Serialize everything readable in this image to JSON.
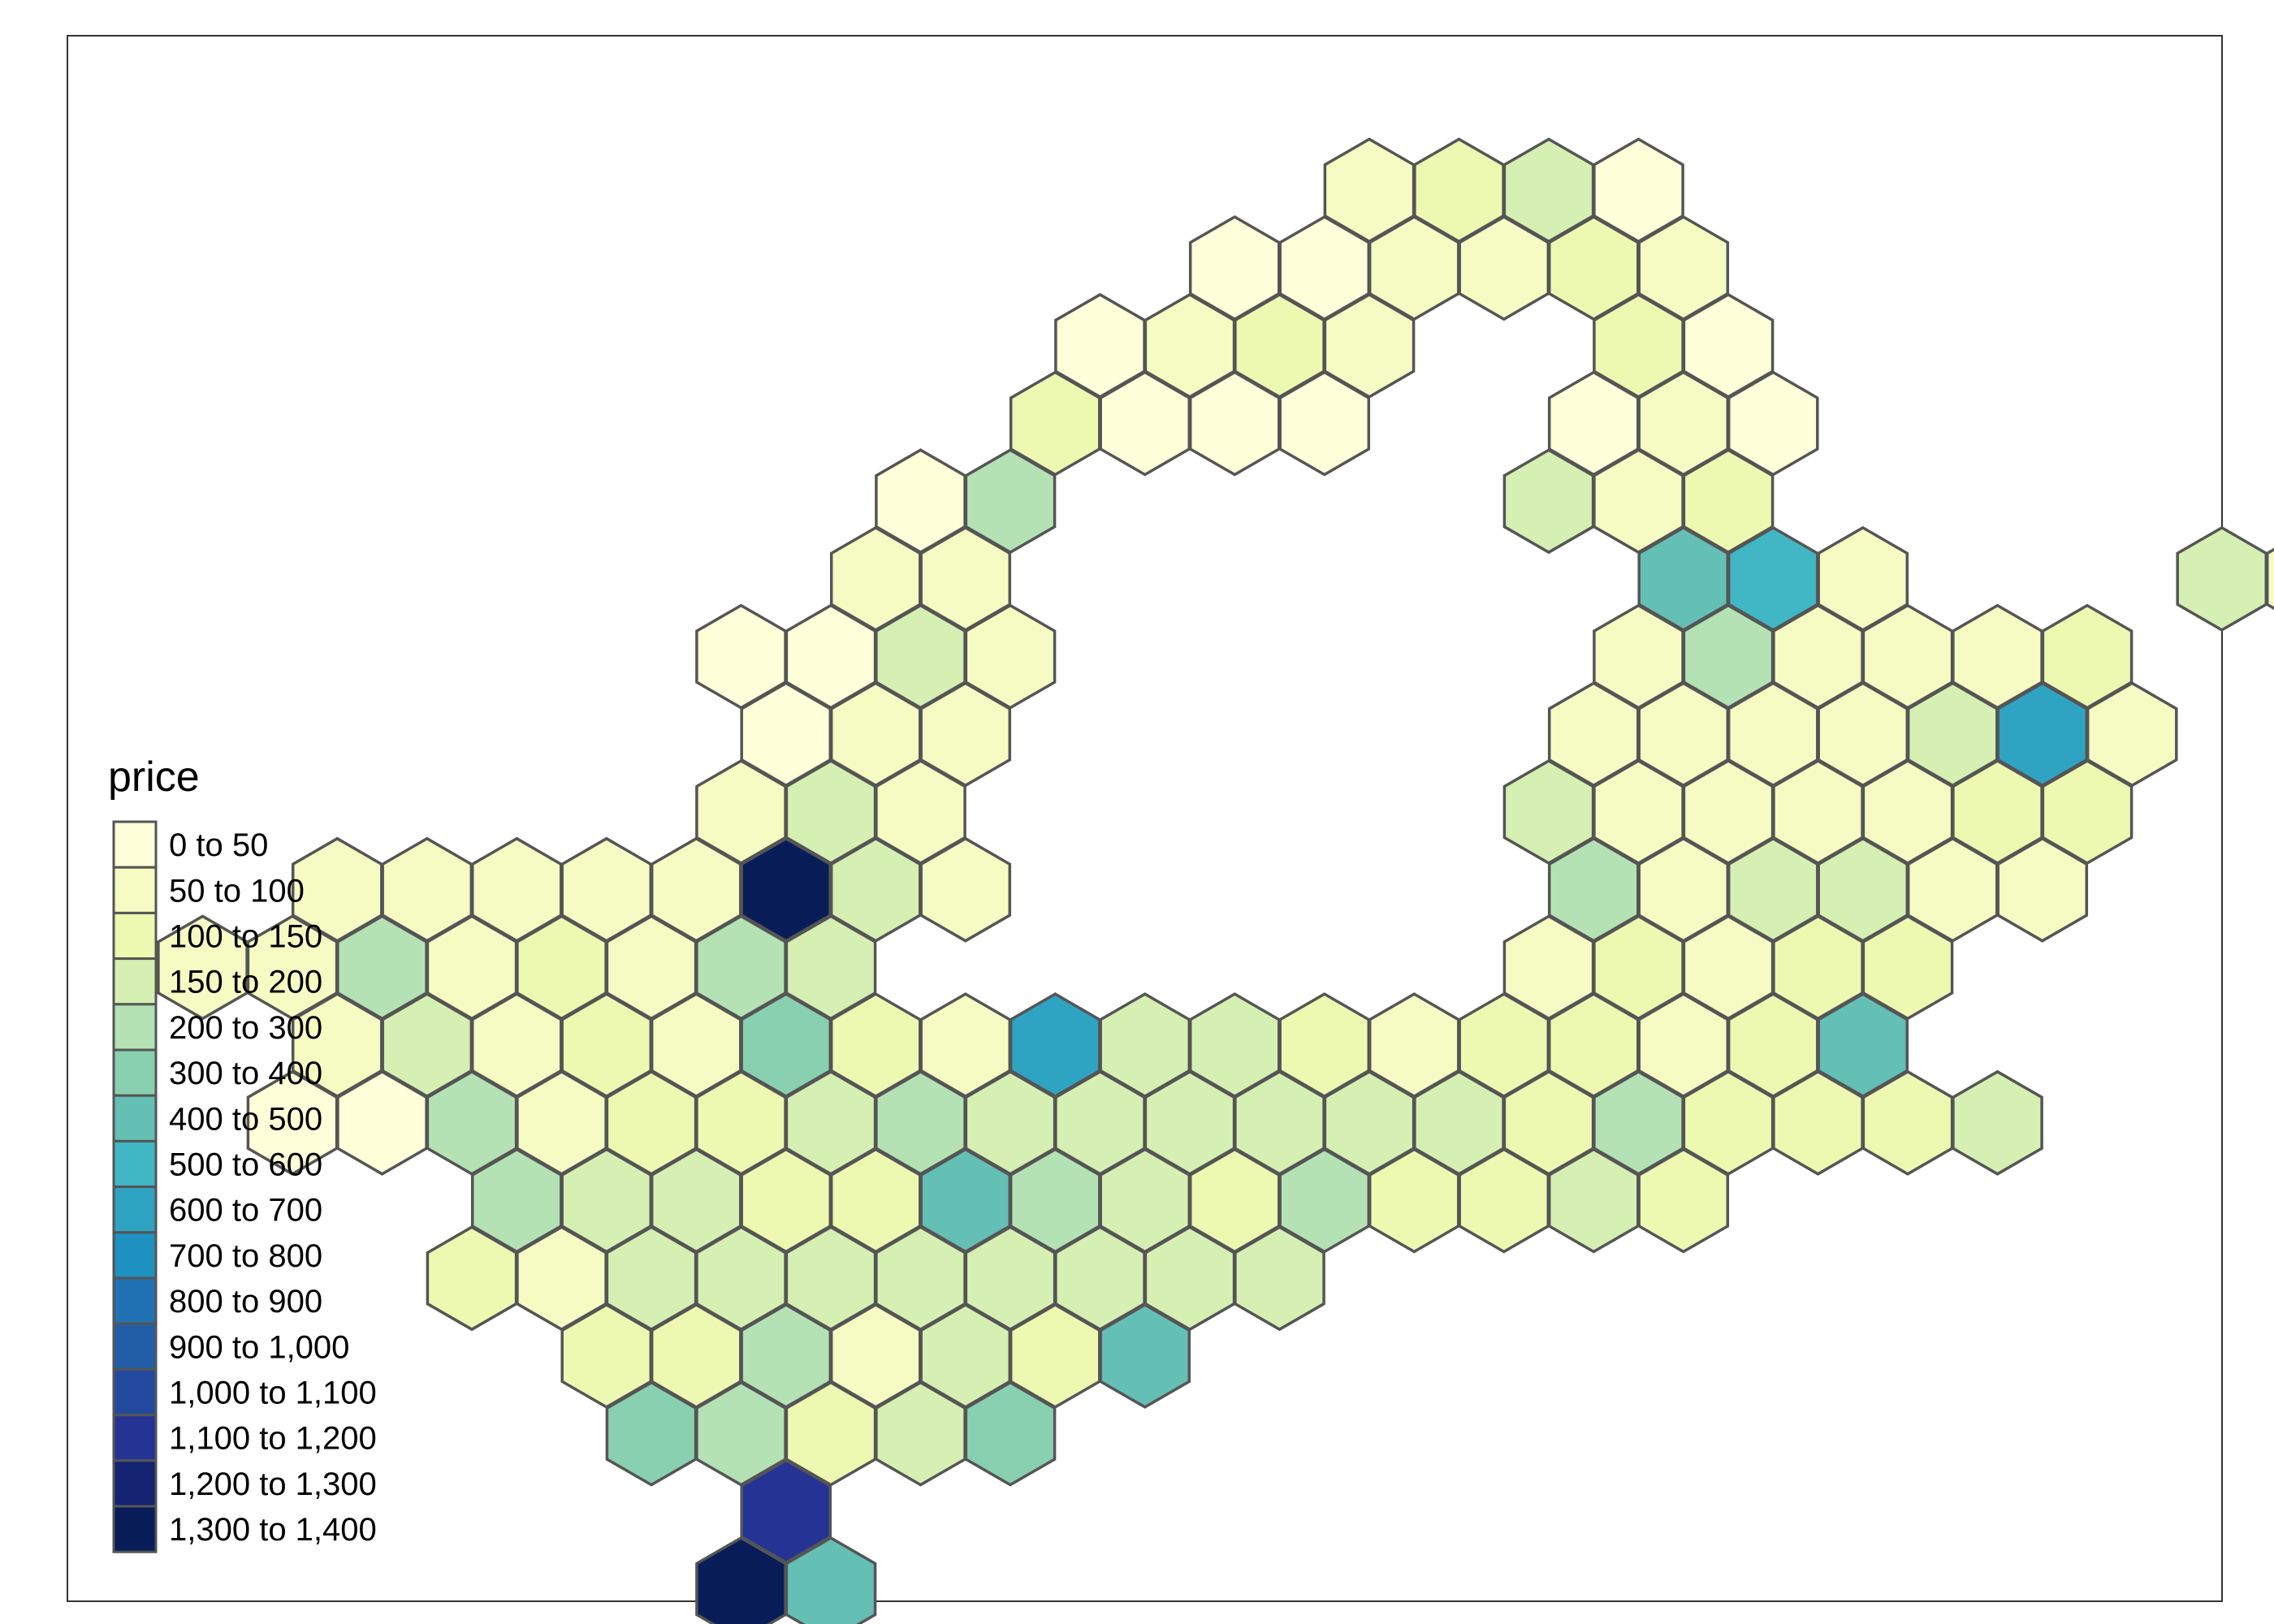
{
  "legend": {
    "title": "price",
    "classes": [
      {
        "label": "0 to 50",
        "color": "#FFFFD9"
      },
      {
        "label": "50 to 100",
        "color": "#F5FBC2"
      },
      {
        "label": "100 to 150",
        "color": "#EDF8B1"
      },
      {
        "label": "150 to 200",
        "color": "#D6EFB3"
      },
      {
        "label": "200 to 300",
        "color": "#B4E2B5"
      },
      {
        "label": "300 to 400",
        "color": "#88D0B0"
      },
      {
        "label": "400 to 500",
        "color": "#64BFB5"
      },
      {
        "label": "500 to 600",
        "color": "#41B6C4"
      },
      {
        "label": "600 to 700",
        "color": "#2FA3C2"
      },
      {
        "label": "700 to 800",
        "color": "#1D91C0"
      },
      {
        "label": "800 to 900",
        "color": "#2171B5"
      },
      {
        "label": "900 to 1,000",
        "color": "#225EA8"
      },
      {
        "label": "1,000 to 1,100",
        "color": "#234A9F"
      },
      {
        "label": "1,100 to 1,200",
        "color": "#253494"
      },
      {
        "label": "1,200 to 1,300",
        "color": "#142372"
      },
      {
        "label": "1,300 to 1,400",
        "color": "#081D58"
      }
    ]
  },
  "hexes": [
    [
      2,
      -8,
      1
    ],
    [
      3,
      -8,
      2
    ],
    [
      4,
      -8,
      3
    ],
    [
      5,
      -8,
      0
    ],
    [
      0,
      -7,
      0
    ],
    [
      1,
      -7,
      0
    ],
    [
      2,
      -7,
      1
    ],
    [
      3,
      -7,
      1
    ],
    [
      4,
      -7,
      2
    ],
    [
      5,
      -7,
      1
    ],
    [
      -1,
      -6,
      0
    ],
    [
      0,
      -6,
      1
    ],
    [
      1,
      -6,
      2
    ],
    [
      2,
      -6,
      1
    ],
    [
      5,
      -6,
      2
    ],
    [
      6,
      -6,
      0
    ],
    [
      -2,
      -5,
      2
    ],
    [
      -1,
      -5,
      0
    ],
    [
      0,
      -5,
      0
    ],
    [
      1,
      -5,
      0
    ],
    [
      4,
      -5,
      0
    ],
    [
      5,
      -5,
      1
    ],
    [
      6,
      -5,
      0
    ],
    [
      -3,
      -4,
      0
    ],
    [
      -2,
      -4,
      4
    ],
    [
      4,
      -4,
      3
    ],
    [
      5,
      -4,
      1
    ],
    [
      6,
      -4,
      2
    ],
    [
      13,
      -4,
      2
    ],
    [
      -4,
      -3,
      1
    ],
    [
      -3,
      -3,
      1
    ],
    [
      5,
      -3,
      6
    ],
    [
      6,
      -3,
      7
    ],
    [
      7,
      -3,
      1
    ],
    [
      11,
      -3,
      3
    ],
    [
      12,
      -3,
      1
    ],
    [
      13,
      -3,
      1
    ],
    [
      14,
      -3,
      1
    ],
    [
      15,
      -3,
      0
    ],
    [
      -5,
      -2,
      0
    ],
    [
      -4,
      -2,
      0
    ],
    [
      -3,
      -2,
      3
    ],
    [
      -2,
      -2,
      1
    ],
    [
      5,
      -2,
      1
    ],
    [
      6,
      -2,
      4
    ],
    [
      7,
      -2,
      1
    ],
    [
      8,
      -2,
      1
    ],
    [
      9,
      -2,
      1
    ],
    [
      10,
      -2,
      2
    ],
    [
      15,
      -2,
      1
    ],
    [
      18,
      -2,
      1
    ],
    [
      -5,
      -1,
      0
    ],
    [
      -4,
      -1,
      1
    ],
    [
      -3,
      -1,
      1
    ],
    [
      4,
      -1,
      1
    ],
    [
      5,
      -1,
      1
    ],
    [
      6,
      -1,
      1
    ],
    [
      7,
      -1,
      1
    ],
    [
      8,
      -1,
      3
    ],
    [
      9,
      -1,
      8
    ],
    [
      10,
      -1,
      1
    ],
    [
      16,
      -1,
      2
    ],
    [
      17,
      -1,
      1
    ],
    [
      18,
      -1,
      1
    ],
    [
      -5,
      0,
      1
    ],
    [
      -4,
      0,
      3
    ],
    [
      -3,
      0,
      1
    ],
    [
      4,
      0,
      3
    ],
    [
      5,
      0,
      1
    ],
    [
      6,
      0,
      1
    ],
    [
      7,
      0,
      1
    ],
    [
      8,
      0,
      1
    ],
    [
      9,
      0,
      2
    ],
    [
      10,
      0,
      2
    ],
    [
      15,
      0,
      1
    ],
    [
      16,
      0,
      0
    ],
    [
      17,
      0,
      1
    ],
    [
      18,
      0,
      1
    ],
    [
      -10,
      1,
      1
    ],
    [
      -9,
      1,
      1
    ],
    [
      -8,
      1,
      1
    ],
    [
      -7,
      1,
      1
    ],
    [
      -6,
      1,
      1
    ],
    [
      -5,
      1,
      15
    ],
    [
      -4,
      1,
      3
    ],
    [
      -3,
      1,
      1
    ],
    [
      4,
      1,
      4
    ],
    [
      5,
      1,
      1
    ],
    [
      6,
      1,
      3
    ],
    [
      7,
      1,
      3
    ],
    [
      8,
      1,
      1
    ],
    [
      9,
      1,
      1
    ],
    [
      15,
      1,
      1
    ],
    [
      16,
      1,
      1
    ],
    [
      17,
      1,
      3
    ],
    [
      18,
      1,
      2
    ],
    [
      -11,
      2,
      1
    ],
    [
      -10,
      2,
      1
    ],
    [
      -9,
      2,
      4
    ],
    [
      -8,
      2,
      1
    ],
    [
      -7,
      2,
      2
    ],
    [
      -6,
      2,
      1
    ],
    [
      -5,
      2,
      4
    ],
    [
      -4,
      2,
      3
    ],
    [
      4,
      2,
      1
    ],
    [
      5,
      2,
      2
    ],
    [
      6,
      2,
      1
    ],
    [
      7,
      2,
      2
    ],
    [
      8,
      2,
      2
    ],
    [
      14,
      2,
      1
    ],
    [
      15,
      2,
      1
    ],
    [
      16,
      2,
      1
    ],
    [
      17,
      2,
      1
    ],
    [
      -10,
      3,
      1
    ],
    [
      -9,
      3,
      3
    ],
    [
      -8,
      3,
      1
    ],
    [
      -7,
      3,
      2
    ],
    [
      -6,
      3,
      1
    ],
    [
      -5,
      3,
      5
    ],
    [
      -4,
      3,
      2
    ],
    [
      -3,
      3,
      1
    ],
    [
      -2,
      3,
      8
    ],
    [
      -1,
      3,
      3
    ],
    [
      0,
      3,
      3
    ],
    [
      1,
      3,
      2
    ],
    [
      2,
      3,
      1
    ],
    [
      3,
      3,
      2
    ],
    [
      4,
      3,
      2
    ],
    [
      5,
      3,
      1
    ],
    [
      6,
      3,
      2
    ],
    [
      7,
      3,
      6
    ],
    [
      -10,
      4,
      0
    ],
    [
      -9,
      4,
      0
    ],
    [
      -8,
      4,
      4
    ],
    [
      -7,
      4,
      1
    ],
    [
      -6,
      4,
      2
    ],
    [
      -5,
      4,
      2
    ],
    [
      -4,
      4,
      3
    ],
    [
      -3,
      4,
      4
    ],
    [
      -2,
      4,
      3
    ],
    [
      -1,
      4,
      3
    ],
    [
      0,
      4,
      3
    ],
    [
      1,
      4,
      3
    ],
    [
      2,
      4,
      3
    ],
    [
      3,
      4,
      3
    ],
    [
      4,
      4,
      2
    ],
    [
      5,
      4,
      4
    ],
    [
      6,
      4,
      2
    ],
    [
      7,
      4,
      2
    ],
    [
      8,
      4,
      2
    ],
    [
      9,
      4,
      3
    ],
    [
      -8,
      5,
      4
    ],
    [
      -7,
      5,
      3
    ],
    [
      -6,
      5,
      3
    ],
    [
      -5,
      5,
      2
    ],
    [
      -4,
      5,
      2
    ],
    [
      -3,
      5,
      6
    ],
    [
      -2,
      5,
      4
    ],
    [
      -1,
      5,
      3
    ],
    [
      0,
      5,
      2
    ],
    [
      1,
      5,
      4
    ],
    [
      2,
      5,
      2
    ],
    [
      3,
      5,
      2
    ],
    [
      4,
      5,
      3
    ],
    [
      5,
      5,
      2
    ],
    [
      -8,
      6,
      2
    ],
    [
      -7,
      6,
      1
    ],
    [
      -6,
      6,
      3
    ],
    [
      -5,
      6,
      3
    ],
    [
      -4,
      6,
      3
    ],
    [
      -3,
      6,
      3
    ],
    [
      -2,
      6,
      3
    ],
    [
      -1,
      6,
      3
    ],
    [
      0,
      6,
      3
    ],
    [
      1,
      6,
      3
    ],
    [
      -7,
      7,
      2
    ],
    [
      -6,
      7,
      2
    ],
    [
      -5,
      7,
      4
    ],
    [
      -4,
      7,
      1
    ],
    [
      -3,
      7,
      3
    ],
    [
      -2,
      7,
      2
    ],
    [
      -1,
      7,
      6
    ],
    [
      -6,
      8,
      5
    ],
    [
      -5,
      8,
      4
    ],
    [
      -4,
      8,
      2
    ],
    [
      -3,
      8,
      3
    ],
    [
      -2,
      8,
      5
    ],
    [
      -5,
      9,
      13
    ],
    [
      -5,
      10,
      15
    ],
    [
      -4,
      10,
      6
    ]
  ]
}
